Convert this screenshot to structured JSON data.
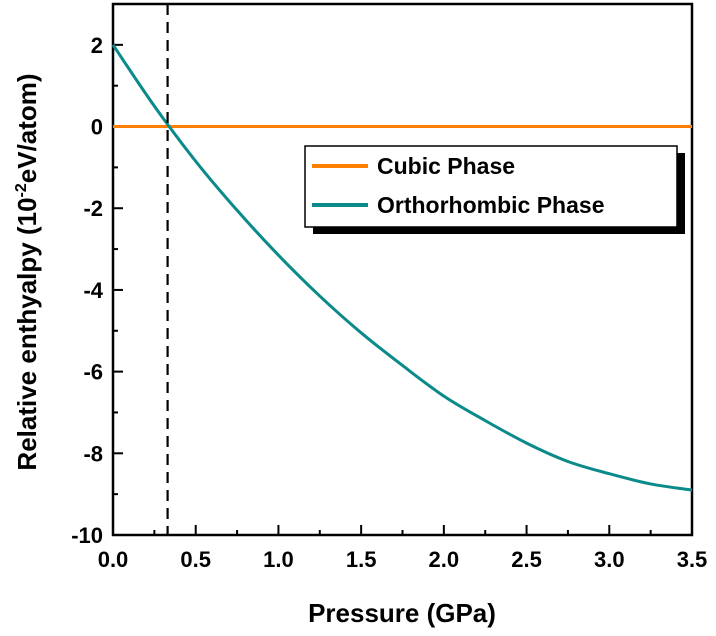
{
  "chart_data": {
    "type": "line",
    "title": "",
    "xlabel": "Pressure (GPa)",
    "ylabel": {
      "prefix": "Relative enthyalpy (10",
      "superscript": "-2",
      "suffix": "eV/atom)"
    },
    "xlim": [
      0.0,
      3.5
    ],
    "ylim": [
      -10,
      3
    ],
    "xticks": [
      "0.0",
      "0.5",
      "1.0",
      "1.5",
      "2.0",
      "2.5",
      "3.0",
      "3.5"
    ],
    "yticks": [
      "-10",
      "-8",
      "-6",
      "-4",
      "-2",
      "0",
      "2"
    ],
    "transition_pressure": 0.33,
    "legend_position": "right-middle",
    "series": [
      {
        "name": "Cubic Phase",
        "color": "#ff8000",
        "x": [
          0.0,
          3.5
        ],
        "y": [
          0.0,
          0.0
        ]
      },
      {
        "name": "Orthorhombic Phase",
        "color": "#0a8a8a",
        "x": [
          0.0,
          0.25,
          0.5,
          0.75,
          1.0,
          1.25,
          1.5,
          1.75,
          2.0,
          2.25,
          2.5,
          2.75,
          3.0,
          3.25,
          3.5
        ],
        "y": [
          2.0,
          0.5,
          -0.85,
          -2.05,
          -3.15,
          -4.15,
          -5.05,
          -5.85,
          -6.6,
          -7.2,
          -7.75,
          -8.2,
          -8.5,
          -8.75,
          -8.9
        ]
      }
    ]
  }
}
